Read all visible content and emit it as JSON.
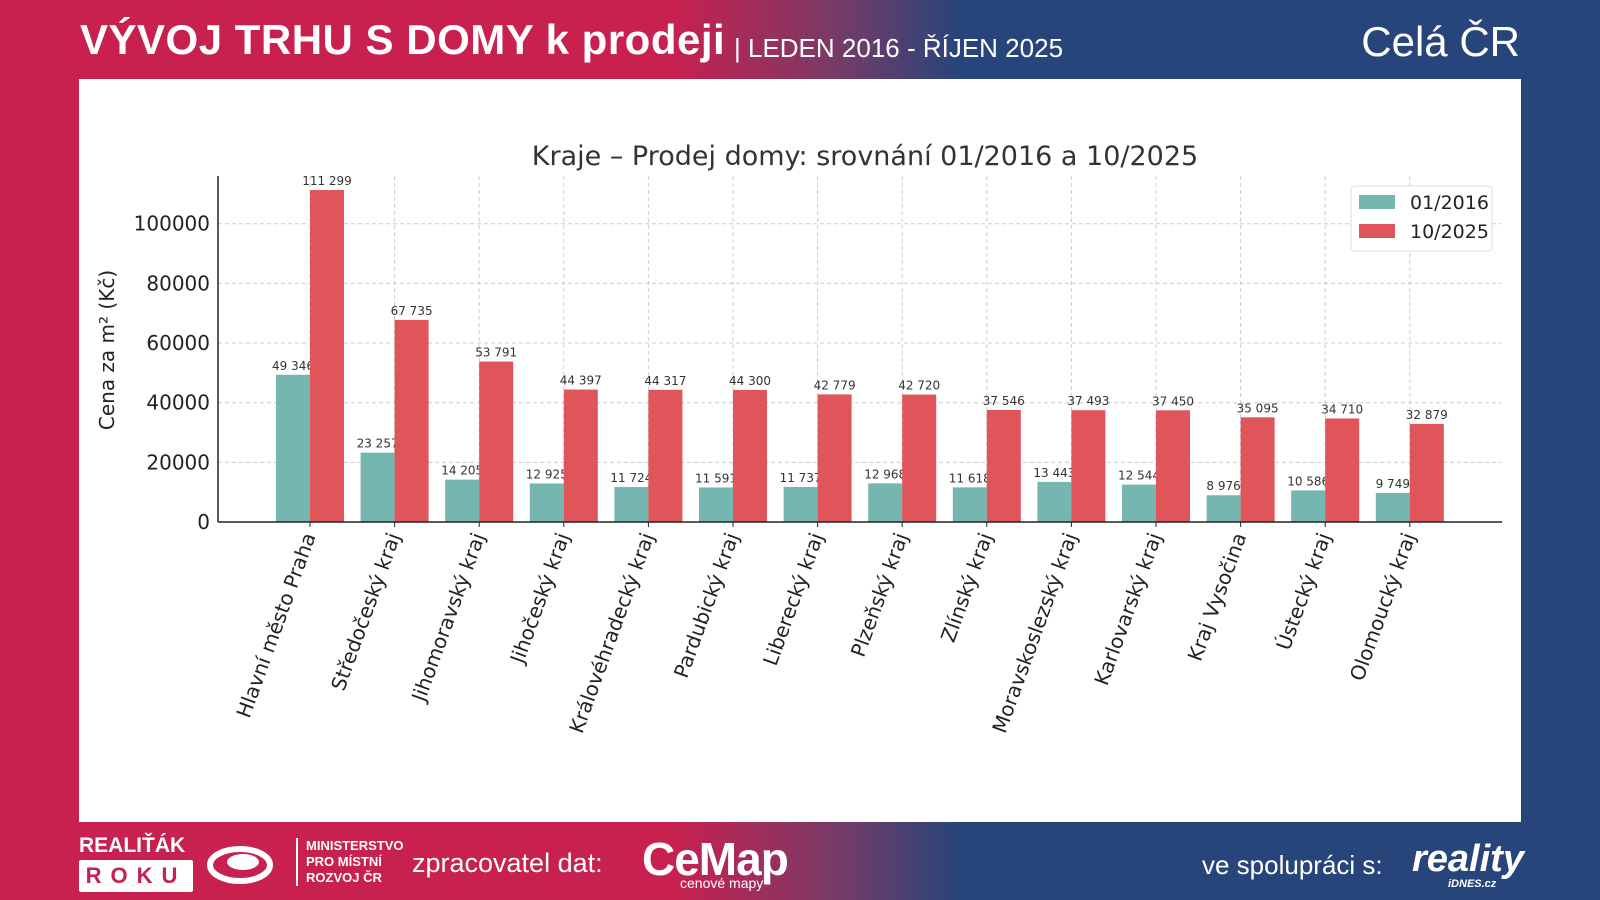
{
  "header": {
    "title": "VÝVOJ TRHU S DOMY k prodeji",
    "subtitle": "| LEDEN 2016 - ŘÍJEN 2025",
    "region": "Celá ČR"
  },
  "footer": {
    "award_top": "REALIŤÁK",
    "award_bottom": "ROKU",
    "ministry": [
      "MINISTERSTVO",
      "PRO MÍSTNÍ",
      "ROZVOJ ČR"
    ],
    "processor_label": "zpracovatel dat:",
    "cemap": "CeMap",
    "cemap_sub": "cenové mapy",
    "partner_label": "ve spolupráci s:",
    "partner": "reality",
    "partner_sub": "iDNES.cz"
  },
  "colors": {
    "series1": "#76b6b0",
    "series2": "#e0555a"
  },
  "chart_data": {
    "type": "bar",
    "title": "Kraje – Prodej domy: srovnání 01/2016 a 10/2025",
    "xlabel": "",
    "ylabel": "Cena za m² (Kč)",
    "ylim": [
      0,
      116000
    ],
    "yticks": [
      0,
      20000,
      40000,
      60000,
      80000,
      100000
    ],
    "grid": true,
    "legend_position": "top-right",
    "categories": [
      "Hlavní město Praha",
      "Středočeský kraj",
      "Jihomoravský kraj",
      "Jihočeský kraj",
      "Královéhradecký kraj",
      "Pardubický kraj",
      "Liberecký kraj",
      "Plzeňský kraj",
      "Zlínský kraj",
      "Moravskoslezský kraj",
      "Karlovarský kraj",
      "Kraj Vysočina",
      "Ústecký kraj",
      "Olomoucký kraj"
    ],
    "series": [
      {
        "name": "01/2016",
        "values": [
          49346,
          23257,
          14205,
          12925,
          11724,
          11591,
          11737,
          12968,
          11618,
          13443,
          12544,
          8976,
          10586,
          9749
        ],
        "labels": [
          "49 346",
          "23 257",
          "14 205",
          "12 925",
          "11 724",
          "11 591",
          "11 737",
          "12 968",
          "11 618",
          "13 443",
          "12 544",
          "8 976",
          "10 586",
          "9 749"
        ]
      },
      {
        "name": "10/2025",
        "values": [
          111299,
          67735,
          53791,
          44397,
          44317,
          44300,
          42779,
          42720,
          37546,
          37493,
          37450,
          35095,
          34710,
          32879
        ],
        "labels": [
          "111 299",
          "67 735",
          "53 791",
          "44 397",
          "44 317",
          "44 300",
          "42 779",
          "42 720",
          "37 546",
          "37 493",
          "37 450",
          "35 095",
          "34 710",
          "32 879"
        ]
      }
    ]
  }
}
